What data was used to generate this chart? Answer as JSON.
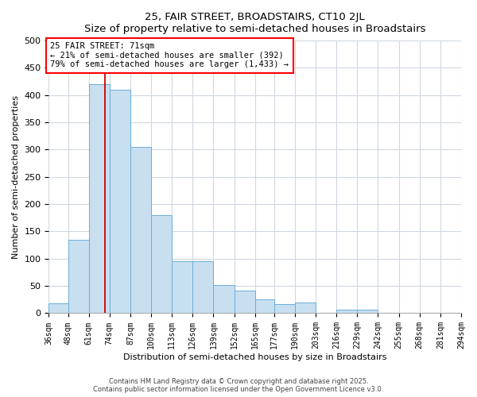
{
  "title": "25, FAIR STREET, BROADSTAIRS, CT10 2JL",
  "subtitle": "Size of property relative to semi-detached houses in Broadstairs",
  "xlabel": "Distribution of semi-detached houses by size in Broadstairs",
  "ylabel": "Number of semi-detached properties",
  "bins": [
    36,
    48,
    61,
    74,
    87,
    100,
    113,
    126,
    139,
    152,
    165,
    177,
    190,
    203,
    216,
    229,
    242,
    255,
    268,
    281,
    294
  ],
  "bar_values": [
    18,
    135,
    420,
    410,
    305,
    180,
    95,
    95,
    52,
    42,
    26,
    17,
    20,
    0,
    7,
    7,
    0,
    0,
    0,
    0
  ],
  "bar_color": "#c8dff0",
  "bar_edge_color": "#6baed6",
  "background_color": "#ffffff",
  "plot_bg_color": "#ffffff",
  "grid_color": "#d0d8e0",
  "property_sqm": 71,
  "annotation_title": "25 FAIR STREET: 71sqm",
  "annotation_line1": "← 21% of semi-detached houses are smaller (392)",
  "annotation_line2": "79% of semi-detached houses are larger (1,433) →",
  "vline_color": "#cc0000",
  "ylim": [
    0,
    500
  ],
  "yticks": [
    0,
    50,
    100,
    150,
    200,
    250,
    300,
    350,
    400,
    450,
    500
  ],
  "footer_line1": "Contains HM Land Registry data © Crown copyright and database right 2025.",
  "footer_line2": "Contains public sector information licensed under the Open Government Licence v3.0.",
  "tick_labels": [
    "36sqm",
    "48sqm",
    "61sqm",
    "74sqm",
    "87sqm",
    "100sqm",
    "113sqm",
    "126sqm",
    "139sqm",
    "152sqm",
    "165sqm",
    "177sqm",
    "190sqm",
    "203sqm",
    "216sqm",
    "229sqm",
    "242sqm",
    "255sqm",
    "268sqm",
    "281sqm",
    "294sqm"
  ]
}
